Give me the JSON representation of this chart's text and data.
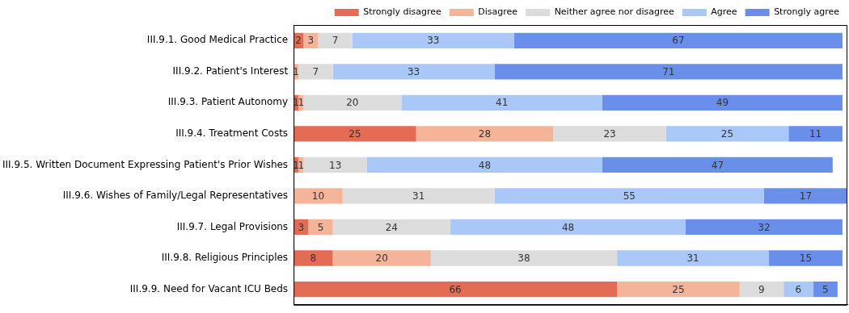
{
  "chart_data": {
    "type": "bar",
    "orientation": "horizontal",
    "stacked": true,
    "data_labels": true,
    "legend": "top right",
    "tick_labels": "y",
    "categories": [
      "III.9.1. Good Medical Practice",
      "III.9.2. Patient's Interest",
      "III.9.3. Patient Autonomy",
      "III.9.4. Treatment Costs",
      "III.9.5. Written Document Expressing Patient's Prior Wishes",
      "III.9.6. Wishes of Family/Legal Representatives",
      "III.9.7. Legal Provisions",
      "III.9.8. Religious Principles",
      "III.9.9. Need for Vacant ICU Beds"
    ],
    "series": [
      {
        "name": "Strongly disagree",
        "color": "#e36c55",
        "values": [
          2,
          null,
          1,
          25,
          1,
          null,
          3,
          8,
          66
        ]
      },
      {
        "name": "Disagree",
        "color": "#f4b49a",
        "values": [
          3,
          1,
          1,
          28,
          1,
          10,
          5,
          20,
          25
        ]
      },
      {
        "name": "Neither agree nor disagree",
        "color": "#dcdcdc",
        "values": [
          7,
          7,
          20,
          23,
          13,
          31,
          24,
          38,
          9
        ]
      },
      {
        "name": "Agree",
        "color": "#a9c7f7",
        "values": [
          33,
          33,
          41,
          25,
          48,
          55,
          48,
          31,
          6
        ]
      },
      {
        "name": "Strongly agree",
        "color": "#6a8fea",
        "values": [
          67,
          71,
          49,
          11,
          47,
          17,
          32,
          15,
          5
        ]
      }
    ]
  }
}
